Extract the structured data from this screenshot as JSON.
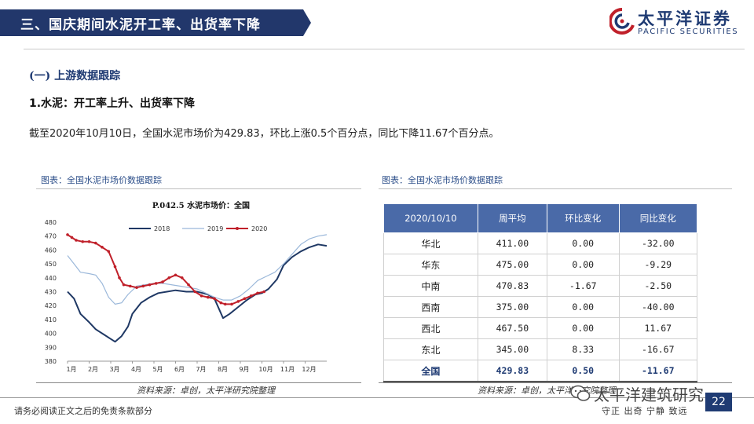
{
  "header": {
    "title": "三、国庆期间水泥开工率、出货率下降",
    "logo_cn": "太平洋证券",
    "logo_en": "PACIFIC SECURITIES"
  },
  "section": {
    "heading": "(一) 上游数据跟踪",
    "subheading": "1.水泥：开工率上升、出货率下降",
    "paragraph": "截至2020年10月10日，全国水泥市场价为429.83，环比上涨0.5个百分点，同比下降11.67个百分点。"
  },
  "left_panel": {
    "caption": "图表：全国水泥市场价数据跟踪",
    "source": "资料来源：卓创，太平洋研究院整理"
  },
  "right_panel": {
    "caption": "图表：全国水泥市场价数据跟踪",
    "source": "资料来源：卓创，太平洋研究院整理"
  },
  "chart_data": {
    "type": "line",
    "title": "P.042.5 水泥市场价：全国",
    "x": [
      "1月",
      "2月",
      "3月",
      "4月",
      "5月",
      "6月",
      "7月",
      "8月",
      "9月",
      "10月",
      "11月",
      "12月"
    ],
    "ylim": [
      380,
      480
    ],
    "yticks": [
      380,
      390,
      400,
      410,
      420,
      430,
      440,
      450,
      460,
      470,
      480
    ],
    "grid": false,
    "legend_position": "top",
    "series": [
      {
        "name": "2018",
        "color": "#1f3864",
        "points": [
          [
            1,
            430
          ],
          [
            1.3,
            425
          ],
          [
            1.6,
            414
          ],
          [
            2,
            408
          ],
          [
            2.3,
            403
          ],
          [
            2.7,
            399
          ],
          [
            3,
            396
          ],
          [
            3.2,
            394
          ],
          [
            3.5,
            398
          ],
          [
            3.8,
            405
          ],
          [
            4,
            414
          ],
          [
            4.4,
            422
          ],
          [
            4.8,
            426
          ],
          [
            5.2,
            429
          ],
          [
            5.6,
            430
          ],
          [
            6,
            431
          ],
          [
            6.5,
            430
          ],
          [
            7,
            430
          ],
          [
            7.5,
            428
          ],
          [
            7.8,
            425
          ],
          [
            8,
            418
          ],
          [
            8.2,
            411
          ],
          [
            8.5,
            414
          ],
          [
            8.9,
            419
          ],
          [
            9.3,
            424
          ],
          [
            9.7,
            428
          ],
          [
            10,
            429
          ],
          [
            10.3,
            432
          ],
          [
            10.7,
            439
          ],
          [
            11,
            449
          ],
          [
            11.4,
            455
          ],
          [
            11.8,
            459
          ],
          [
            12.2,
            462
          ],
          [
            12.6,
            464
          ],
          [
            13,
            463
          ]
        ]
      },
      {
        "name": "2019",
        "color": "#9bb8da",
        "points": [
          [
            1,
            456
          ],
          [
            1.3,
            450
          ],
          [
            1.6,
            444
          ],
          [
            2,
            443
          ],
          [
            2.3,
            442
          ],
          [
            2.6,
            436
          ],
          [
            2.9,
            426
          ],
          [
            3.2,
            421
          ],
          [
            3.5,
            422
          ],
          [
            3.8,
            428
          ],
          [
            4.2,
            434
          ],
          [
            4.6,
            435
          ],
          [
            5,
            436
          ],
          [
            5.4,
            436
          ],
          [
            5.8,
            435
          ],
          [
            6.2,
            434
          ],
          [
            6.6,
            433
          ],
          [
            7,
            432
          ],
          [
            7.4,
            429
          ],
          [
            7.8,
            426
          ],
          [
            8.2,
            424
          ],
          [
            8.6,
            424
          ],
          [
            9,
            427
          ],
          [
            9.4,
            432
          ],
          [
            9.8,
            438
          ],
          [
            10.2,
            441
          ],
          [
            10.6,
            444
          ],
          [
            11,
            450
          ],
          [
            11.4,
            457
          ],
          [
            11.8,
            464
          ],
          [
            12.2,
            468
          ],
          [
            12.6,
            470
          ],
          [
            13,
            471
          ]
        ]
      },
      {
        "name": "2020",
        "color": "#c0202a",
        "points": [
          [
            1,
            471
          ],
          [
            1.2,
            469
          ],
          [
            1.4,
            467
          ],
          [
            1.7,
            466
          ],
          [
            2,
            466
          ],
          [
            2.3,
            465
          ],
          [
            2.6,
            462
          ],
          [
            2.9,
            459
          ],
          [
            3.2,
            448
          ],
          [
            3.4,
            440
          ],
          [
            3.6,
            435
          ],
          [
            3.9,
            434
          ],
          [
            4.2,
            433
          ],
          [
            4.5,
            434
          ],
          [
            4.8,
            435
          ],
          [
            5.1,
            436
          ],
          [
            5.4,
            437
          ],
          [
            5.7,
            440
          ],
          [
            6,
            442
          ],
          [
            6.3,
            440
          ],
          [
            6.6,
            435
          ],
          [
            6.9,
            430
          ],
          [
            7.2,
            427
          ],
          [
            7.5,
            426
          ],
          [
            7.8,
            425
          ],
          [
            8.1,
            422
          ],
          [
            8.3,
            421
          ],
          [
            8.6,
            421
          ],
          [
            8.9,
            423
          ],
          [
            9.2,
            425
          ],
          [
            9.5,
            427
          ],
          [
            9.8,
            429
          ],
          [
            10.1,
            430
          ]
        ]
      }
    ]
  },
  "table": {
    "headers": [
      "2020/10/10",
      "周平均",
      "环比变化",
      "同比变化"
    ],
    "rows": [
      [
        "华北",
        "411.00",
        "0.00",
        "-32.00"
      ],
      [
        "华东",
        "475.00",
        "0.00",
        "-9.29"
      ],
      [
        "中南",
        "470.83",
        "-1.67",
        "-2.50"
      ],
      [
        "西南",
        "375.00",
        "0.00",
        "-40.00"
      ],
      [
        "西北",
        "467.50",
        "0.00",
        "11.67"
      ],
      [
        "东北",
        "345.00",
        "8.33",
        "-16.67"
      ]
    ],
    "total": [
      "全国",
      "429.83",
      "0.50",
      "-11.67"
    ]
  },
  "footer": {
    "disclaimer": "请务必阅读正文之后的免责条款部分",
    "watermark": "太平洋建筑研究",
    "motto": "守正 出奇 宁静 致远",
    "page": "22"
  },
  "colors": {
    "brand": "#1f3b73",
    "title_bar": "#22376b",
    "table_header": "#4a6aa8",
    "accent_red": "#c0202a"
  }
}
